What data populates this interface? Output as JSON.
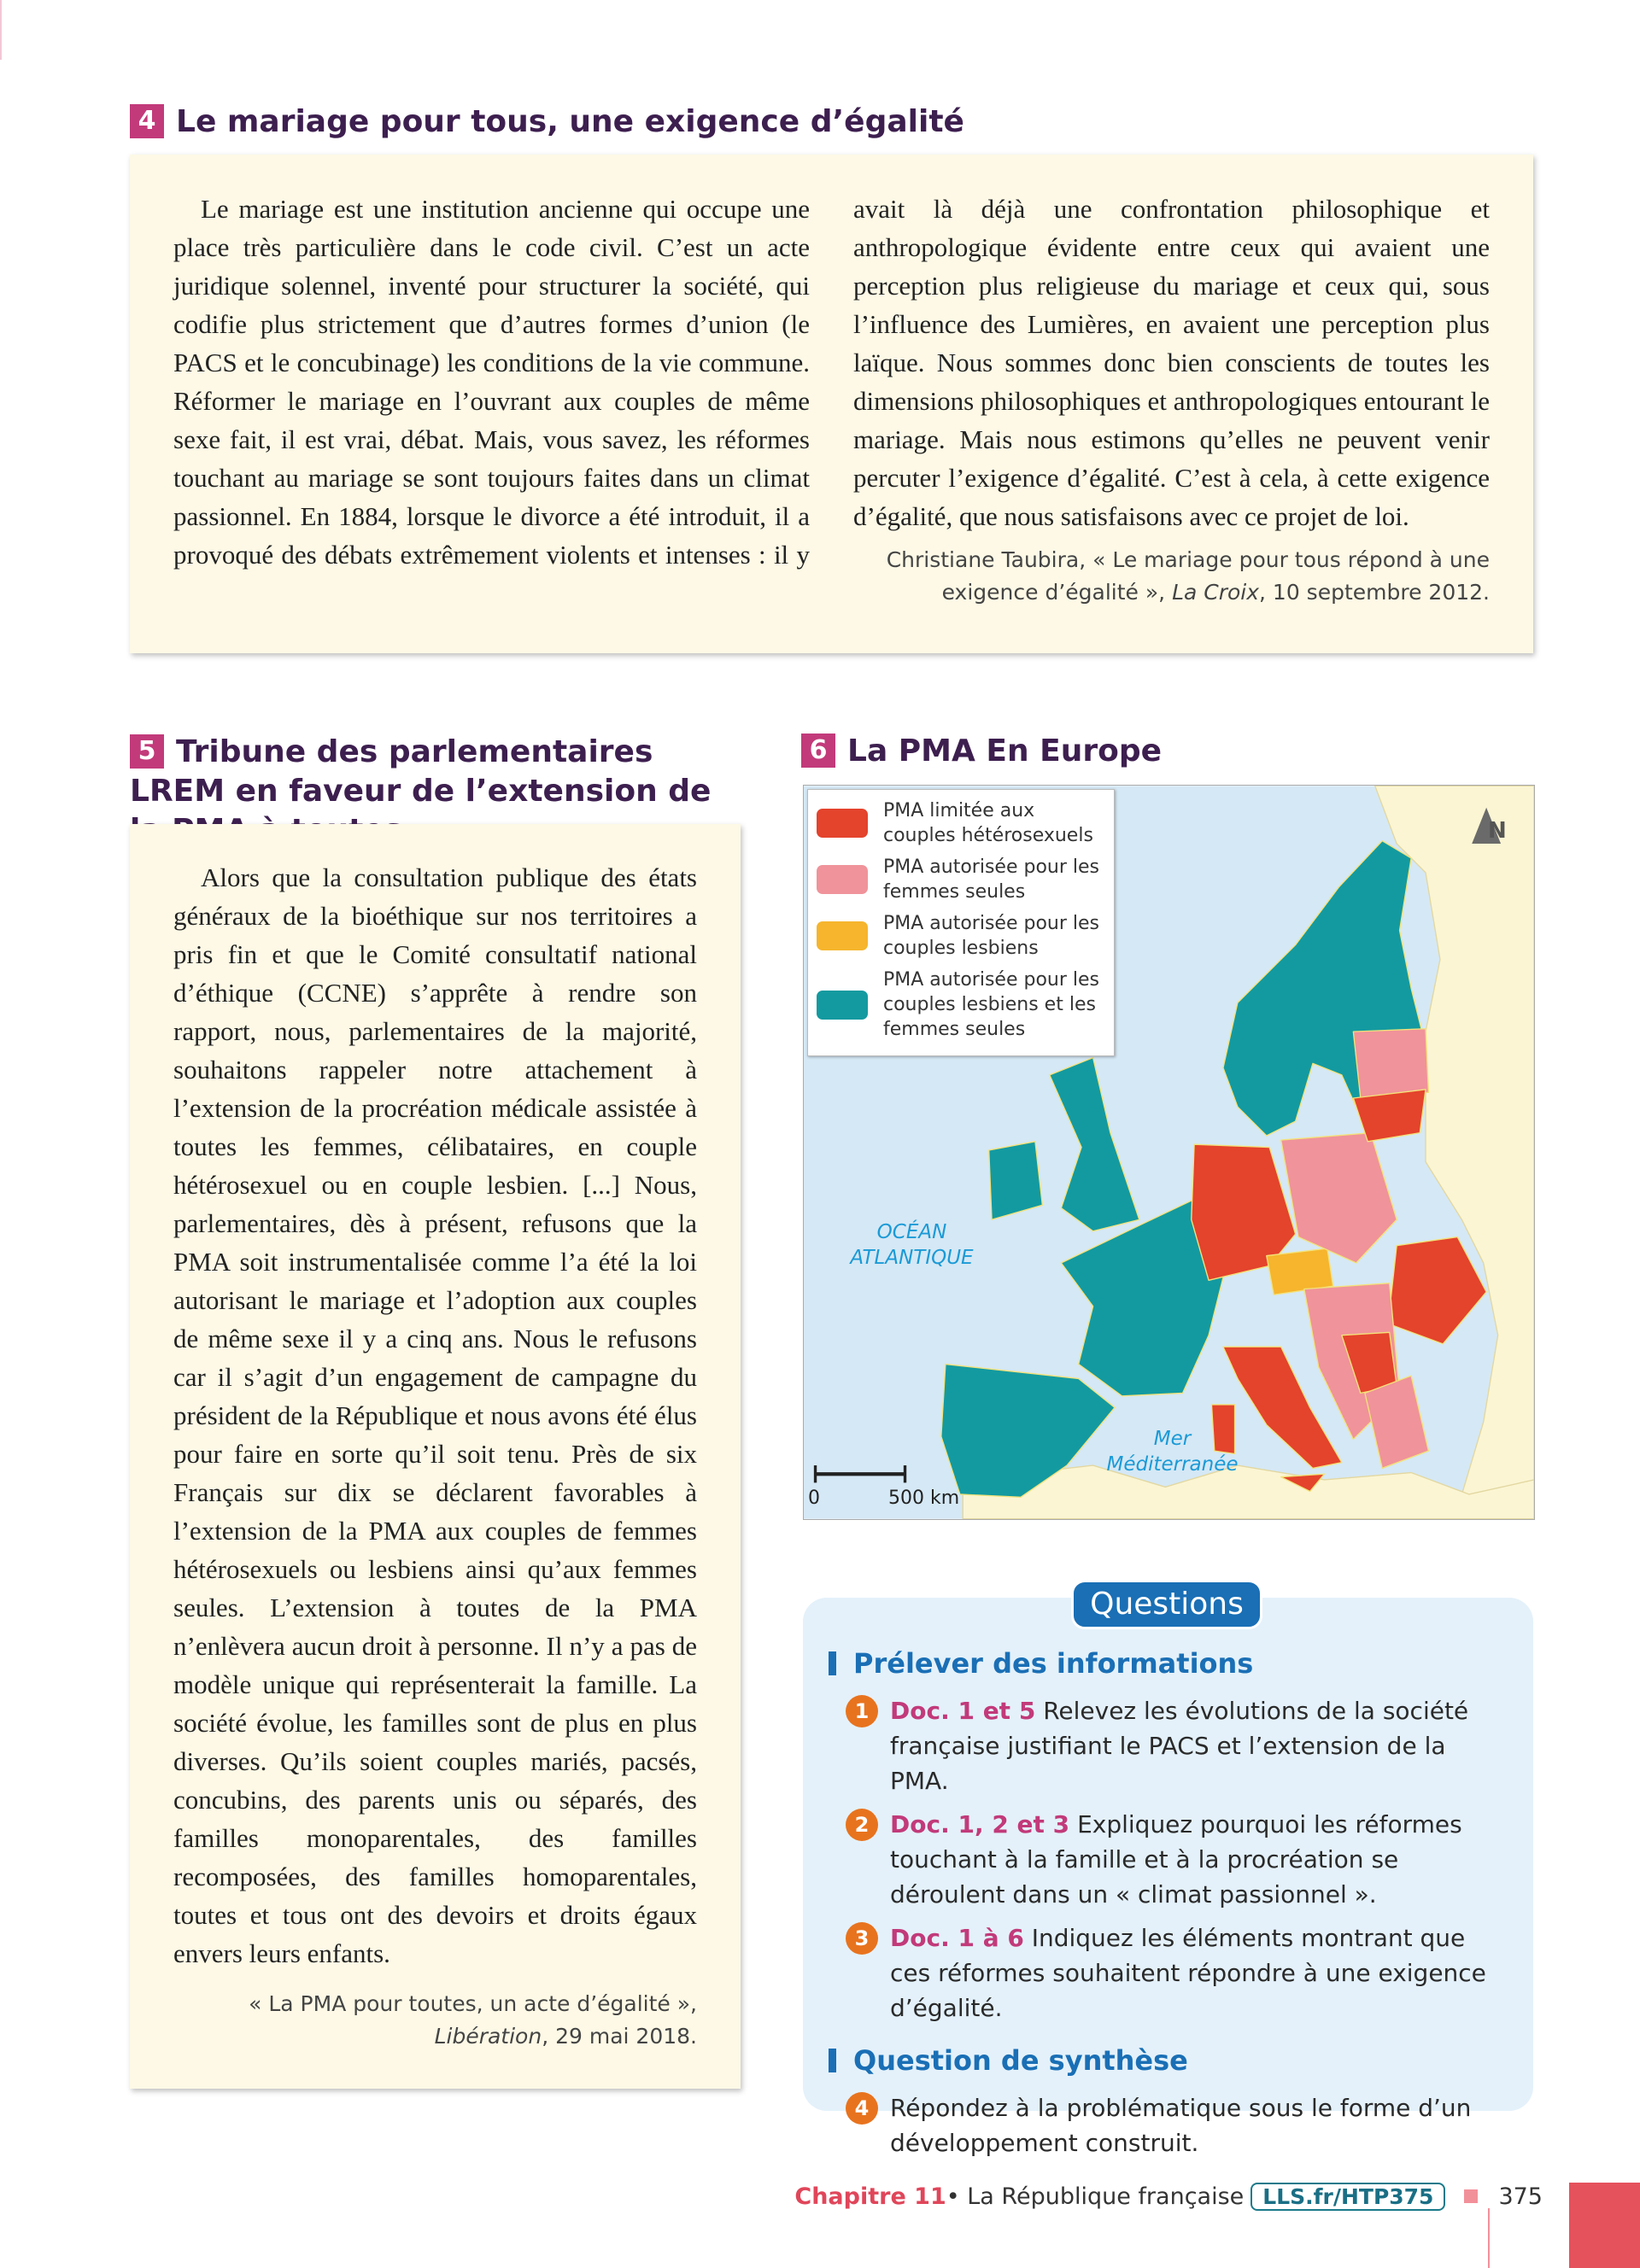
{
  "doc4": {
    "number": "4",
    "title": "Le mariage pour tous, une exigence d’égalité",
    "text": "Le mariage est une institution ancienne qui occupe une place très particulière dans le code civil. C’est un acte juridique solennel, inventé pour structurer la société, qui codifie plus strictement que d’autres formes d’union (le PACS et le concubinage) les conditions de la vie commune. Réformer le mariage en l’ouvrant aux couples de même sexe fait, il est vrai, débat. Mais, vous savez, les réformes touchant au mariage se sont toujours faites dans un climat passionnel. En 1884, lorsque le divorce a été introduit, il a provoqué des débats extrêmement violents et intenses : il y avait là déjà une confrontation philosophique et anthropologique évidente entre ceux qui avaient une perception plus religieuse du mariage et ceux qui, sous l’influence des Lumières, en avaient une perception plus laïque. Nous sommes donc bien conscients de toutes les dimensions philosophiques et anthropologiques entourant le mariage. Mais nous estimons qu’elles ne peuvent venir percuter l’exigence d’égalité. C’est à cela, à cette exigence d’égalité, que nous satisfaisons avec ce projet de loi.",
    "source": {
      "author": "Christiane Taubira, « Le mariage pour tous répond à une exigence d’égalité », ",
      "publication": "La Croix",
      "date": ", 10 septembre 2012."
    }
  },
  "doc5": {
    "number": "5",
    "title": "Tribune des parlementaires LREM en faveur de l’extension de la PMA à toutes",
    "text": "Alors que la consultation publique des états généraux de la bioéthique sur nos territoires a pris fin et que le Comité consultatif national d’éthique (CCNE) s’apprête à rendre son rapport, nous, parlementaires de la majorité, souhaitons rappeler notre attachement à l’extension de la procréation médicale assistée à toutes les femmes, célibataires, en couple hétérosexuel ou en couple lesbien. [...] Nous, parlementaires, dès à présent, refusons que la PMA soit instrumentalisée comme l’a été la loi autorisant le mariage et l’adoption aux couples de même sexe il y a cinq ans. Nous le refusons car il s’agit d’un engagement de campagne du président de la République et nous avons été élus pour faire en sorte qu’il soit tenu. Près de six Français sur dix se déclarent favorables à l’extension de la PMA aux couples de femmes hétérosexuels ou lesbiens ainsi qu’aux femmes seules. L’extension à toutes de la PMA n’enlèvera aucun droit à personne. Il n’y a pas de modèle unique qui représenterait la famille. La société évolue, les familles sont de plus en plus diverses. Qu’ils soient couples mariés, pacsés, concubins, des parents unis ou séparés, des familles monoparentales, des familles recomposées, des familles homoparentales, toutes et tous ont des devoirs et droits égaux envers leurs enfants.",
    "source": {
      "title": "« La PMA pour toutes, un acte d’égalité »,",
      "publication": "Libération",
      "date": ", 29 mai 2018."
    }
  },
  "doc6": {
    "number": "6",
    "title": "La PMA En Europe",
    "legend": [
      {
        "label": "PMA limitée aux couples hétérosexuels",
        "color": "#e4432c"
      },
      {
        "label": "PMA autorisée pour les femmes seules",
        "color": "#f0939a"
      },
      {
        "label": "PMA autorisée pour les couples lesbiens",
        "color": "#f6b52d"
      },
      {
        "label": "PMA autorisée pour les couples lesbiens et les femmes seules",
        "color": "#139aa0"
      }
    ],
    "ocean": "OCÉAN ATLANTIQUE",
    "sea": "Mer Méditerranée",
    "north": "N",
    "scale_start": "0",
    "scale_end": "500 km"
  },
  "questions": {
    "title": "Questions",
    "sections": [
      {
        "heading": "Prélever des informations",
        "items": [
          {
            "number": "1",
            "ref": "Doc. 1 et 5",
            "text": " Relevez les évolutions de la société française justifiant le PACS et l’extension de la PMA."
          },
          {
            "number": "2",
            "ref": "Doc. 1, 2 et 3",
            "text": " Expliquez pourquoi les réformes touchant à la famille et à la procréation se déroulent dans un « climat passionnel »."
          },
          {
            "number": "3",
            "ref": "Doc. 1 à 6",
            "text": " Indiquez les éléments montrant que ces réformes souhaitent répondre à une exigence d’égalité."
          }
        ]
      },
      {
        "heading": "Question de synthèse",
        "items": [
          {
            "number": "4",
            "text": "Répondez à la problématique sous le forme d’un développement construit."
          }
        ]
      }
    ]
  },
  "footer": {
    "chapter": "Chapitre 11",
    "subject": " • La République française",
    "link": "LLS.fr/HTP375",
    "page": "375"
  }
}
